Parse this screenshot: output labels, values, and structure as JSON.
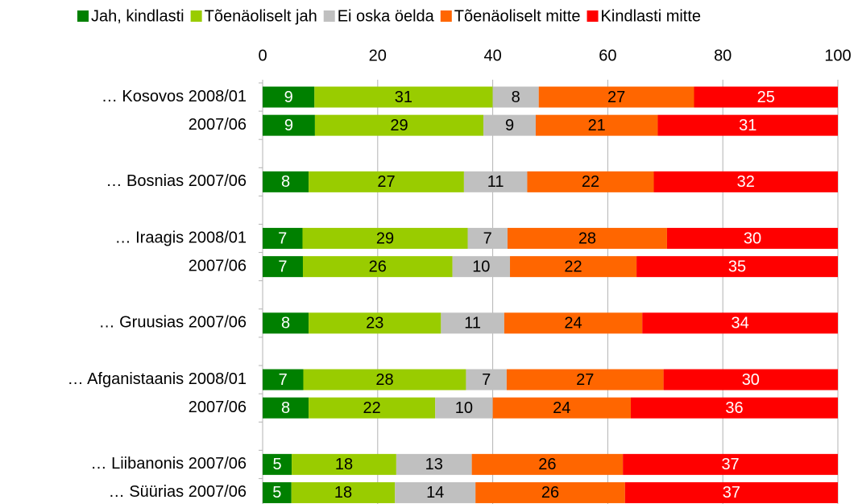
{
  "chart_data": {
    "type": "bar",
    "orientation": "horizontal",
    "stack": "percent",
    "categories": [
      "… Kosovos 2008/01",
      "2007/06",
      null,
      "… Bosnias 2007/06",
      null,
      "… Iraagis 2008/01",
      "2007/06",
      null,
      "… Gruusias 2007/06",
      null,
      "… Afganistaanis 2008/01",
      "2007/06",
      null,
      "… Liibanonis 2007/06",
      "… Süürias 2007/06"
    ],
    "series": [
      {
        "name": "Jah, kindlasti",
        "color": "#008000",
        "label_color": "#ffffff",
        "values": [
          9,
          9,
          null,
          8,
          null,
          7,
          7,
          null,
          8,
          null,
          7,
          8,
          null,
          5,
          5
        ]
      },
      {
        "name": "Tõenäoliselt jah",
        "color": "#99cc00",
        "label_color": "#000000",
        "values": [
          31,
          29,
          null,
          27,
          null,
          29,
          26,
          null,
          23,
          null,
          28,
          22,
          null,
          18,
          18
        ]
      },
      {
        "name": "Ei oska öelda",
        "color": "#c0c0c0",
        "label_color": "#000000",
        "values": [
          8,
          9,
          null,
          11,
          null,
          7,
          10,
          null,
          11,
          null,
          7,
          10,
          null,
          13,
          14
        ]
      },
      {
        "name": "Tõenäoliselt mitte",
        "color": "#ff6600",
        "label_color": "#000000",
        "values": [
          27,
          21,
          null,
          22,
          null,
          28,
          22,
          null,
          24,
          null,
          27,
          24,
          null,
          26,
          26
        ]
      },
      {
        "name": "Kindlasti mitte",
        "color": "#ff0000",
        "label_color": "#ffffff",
        "values": [
          25,
          31,
          null,
          32,
          null,
          30,
          35,
          null,
          34,
          null,
          30,
          36,
          null,
          37,
          37
        ]
      }
    ],
    "xlim": [
      0,
      100
    ],
    "xticks": [
      0,
      20,
      40,
      60,
      80,
      100
    ],
    "grid": true,
    "legend": "top"
  }
}
